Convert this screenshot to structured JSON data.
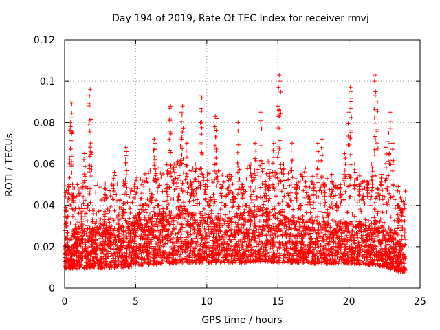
{
  "chart_data": {
    "type": "scatter",
    "title": "Day 194 of 2019, Rate Of TEC Index for receiver rmvj",
    "xlabel": "GPS time / hours",
    "ylabel": "ROTI / TECUs",
    "xlim": [
      0,
      25
    ],
    "ylim": [
      0,
      0.12
    ],
    "xticks": [
      0,
      5,
      10,
      15,
      20,
      25
    ],
    "xtick_labels": [
      "0",
      "5",
      "10",
      "15",
      "20",
      "25"
    ],
    "yticks": [
      0,
      0.02,
      0.04,
      0.06,
      0.08,
      0.1,
      0.12
    ],
    "ytick_labels": [
      "0",
      "0.02",
      "0.04",
      "0.06",
      "0.08",
      "0.1",
      "0.12"
    ],
    "grid": true,
    "marker": "plus",
    "color": "#ff0000",
    "series": [
      {
        "name": "ROTI",
        "x": [
          0.05,
          0.15,
          0.3,
          0.4,
          0.45,
          0.5,
          0.6,
          0.8,
          1.0,
          1.2,
          1.4,
          1.6,
          1.75,
          1.8,
          1.85,
          2.0,
          2.2,
          2.5,
          2.8,
          3.0,
          3.2,
          3.5,
          3.8,
          4.1,
          4.3,
          4.35,
          4.6,
          4.9,
          5.2,
          5.5,
          5.8,
          6.1,
          6.3,
          6.35,
          6.6,
          6.9,
          7.2,
          7.4,
          7.45,
          7.7,
          8.0,
          8.2,
          8.3,
          8.6,
          8.9,
          9.2,
          9.6,
          9.65,
          9.9,
          10.2,
          10.6,
          10.7,
          11.0,
          11.3,
          11.6,
          11.9,
          12.2,
          12.5,
          12.8,
          13.1,
          13.4,
          13.8,
          14.1,
          14.4,
          14.7,
          15.0,
          15.1,
          15.15,
          15.4,
          15.7,
          16.0,
          16.3,
          16.6,
          16.9,
          17.2,
          17.5,
          17.8,
          18.1,
          18.3,
          18.5,
          18.8,
          19.1,
          19.4,
          19.7,
          20.0,
          20.1,
          20.15,
          20.4,
          20.7,
          21.0,
          21.3,
          21.6,
          21.8,
          21.85,
          22.0,
          22.3,
          22.6,
          22.8,
          22.9,
          23.1,
          23.4,
          23.7,
          23.9
        ],
        "y": [
          0.012,
          0.03,
          0.05,
          0.08,
          0.09,
          0.089,
          0.045,
          0.02,
          0.015,
          0.03,
          0.065,
          0.04,
          0.093,
          0.096,
          0.075,
          0.02,
          0.018,
          0.025,
          0.03,
          0.015,
          0.022,
          0.056,
          0.028,
          0.035,
          0.068,
          0.066,
          0.02,
          0.025,
          0.03,
          0.04,
          0.022,
          0.045,
          0.072,
          0.07,
          0.04,
          0.03,
          0.05,
          0.087,
          0.088,
          0.06,
          0.045,
          0.085,
          0.088,
          0.07,
          0.05,
          0.06,
          0.093,
          0.092,
          0.05,
          0.04,
          0.083,
          0.082,
          0.05,
          0.04,
          0.055,
          0.045,
          0.08,
          0.05,
          0.04,
          0.06,
          0.07,
          0.085,
          0.05,
          0.06,
          0.07,
          0.088,
          0.103,
          0.1,
          0.06,
          0.04,
          0.07,
          0.05,
          0.04,
          0.06,
          0.045,
          0.05,
          0.07,
          0.072,
          0.05,
          0.03,
          0.055,
          0.04,
          0.05,
          0.065,
          0.085,
          0.097,
          0.095,
          0.06,
          0.05,
          0.045,
          0.05,
          0.06,
          0.1,
          0.103,
          0.09,
          0.055,
          0.068,
          0.075,
          0.085,
          0.07,
          0.04,
          0.035,
          0.025
        ]
      }
    ],
    "dense_band": [
      {
        "x": 0,
        "low": 0.006,
        "high": 0.028
      },
      {
        "x": 2,
        "low": 0.006,
        "high": 0.03
      },
      {
        "x": 4,
        "low": 0.006,
        "high": 0.03
      },
      {
        "x": 6,
        "low": 0.007,
        "high": 0.035
      },
      {
        "x": 8,
        "low": 0.007,
        "high": 0.04
      },
      {
        "x": 10,
        "low": 0.008,
        "high": 0.035
      },
      {
        "x": 12,
        "low": 0.008,
        "high": 0.035
      },
      {
        "x": 14,
        "low": 0.008,
        "high": 0.04
      },
      {
        "x": 16,
        "low": 0.008,
        "high": 0.035
      },
      {
        "x": 18,
        "low": 0.008,
        "high": 0.032
      },
      {
        "x": 20,
        "low": 0.008,
        "high": 0.032
      },
      {
        "x": 22,
        "low": 0.007,
        "high": 0.033
      },
      {
        "x": 24,
        "low": 0.004,
        "high": 0.025
      }
    ]
  }
}
